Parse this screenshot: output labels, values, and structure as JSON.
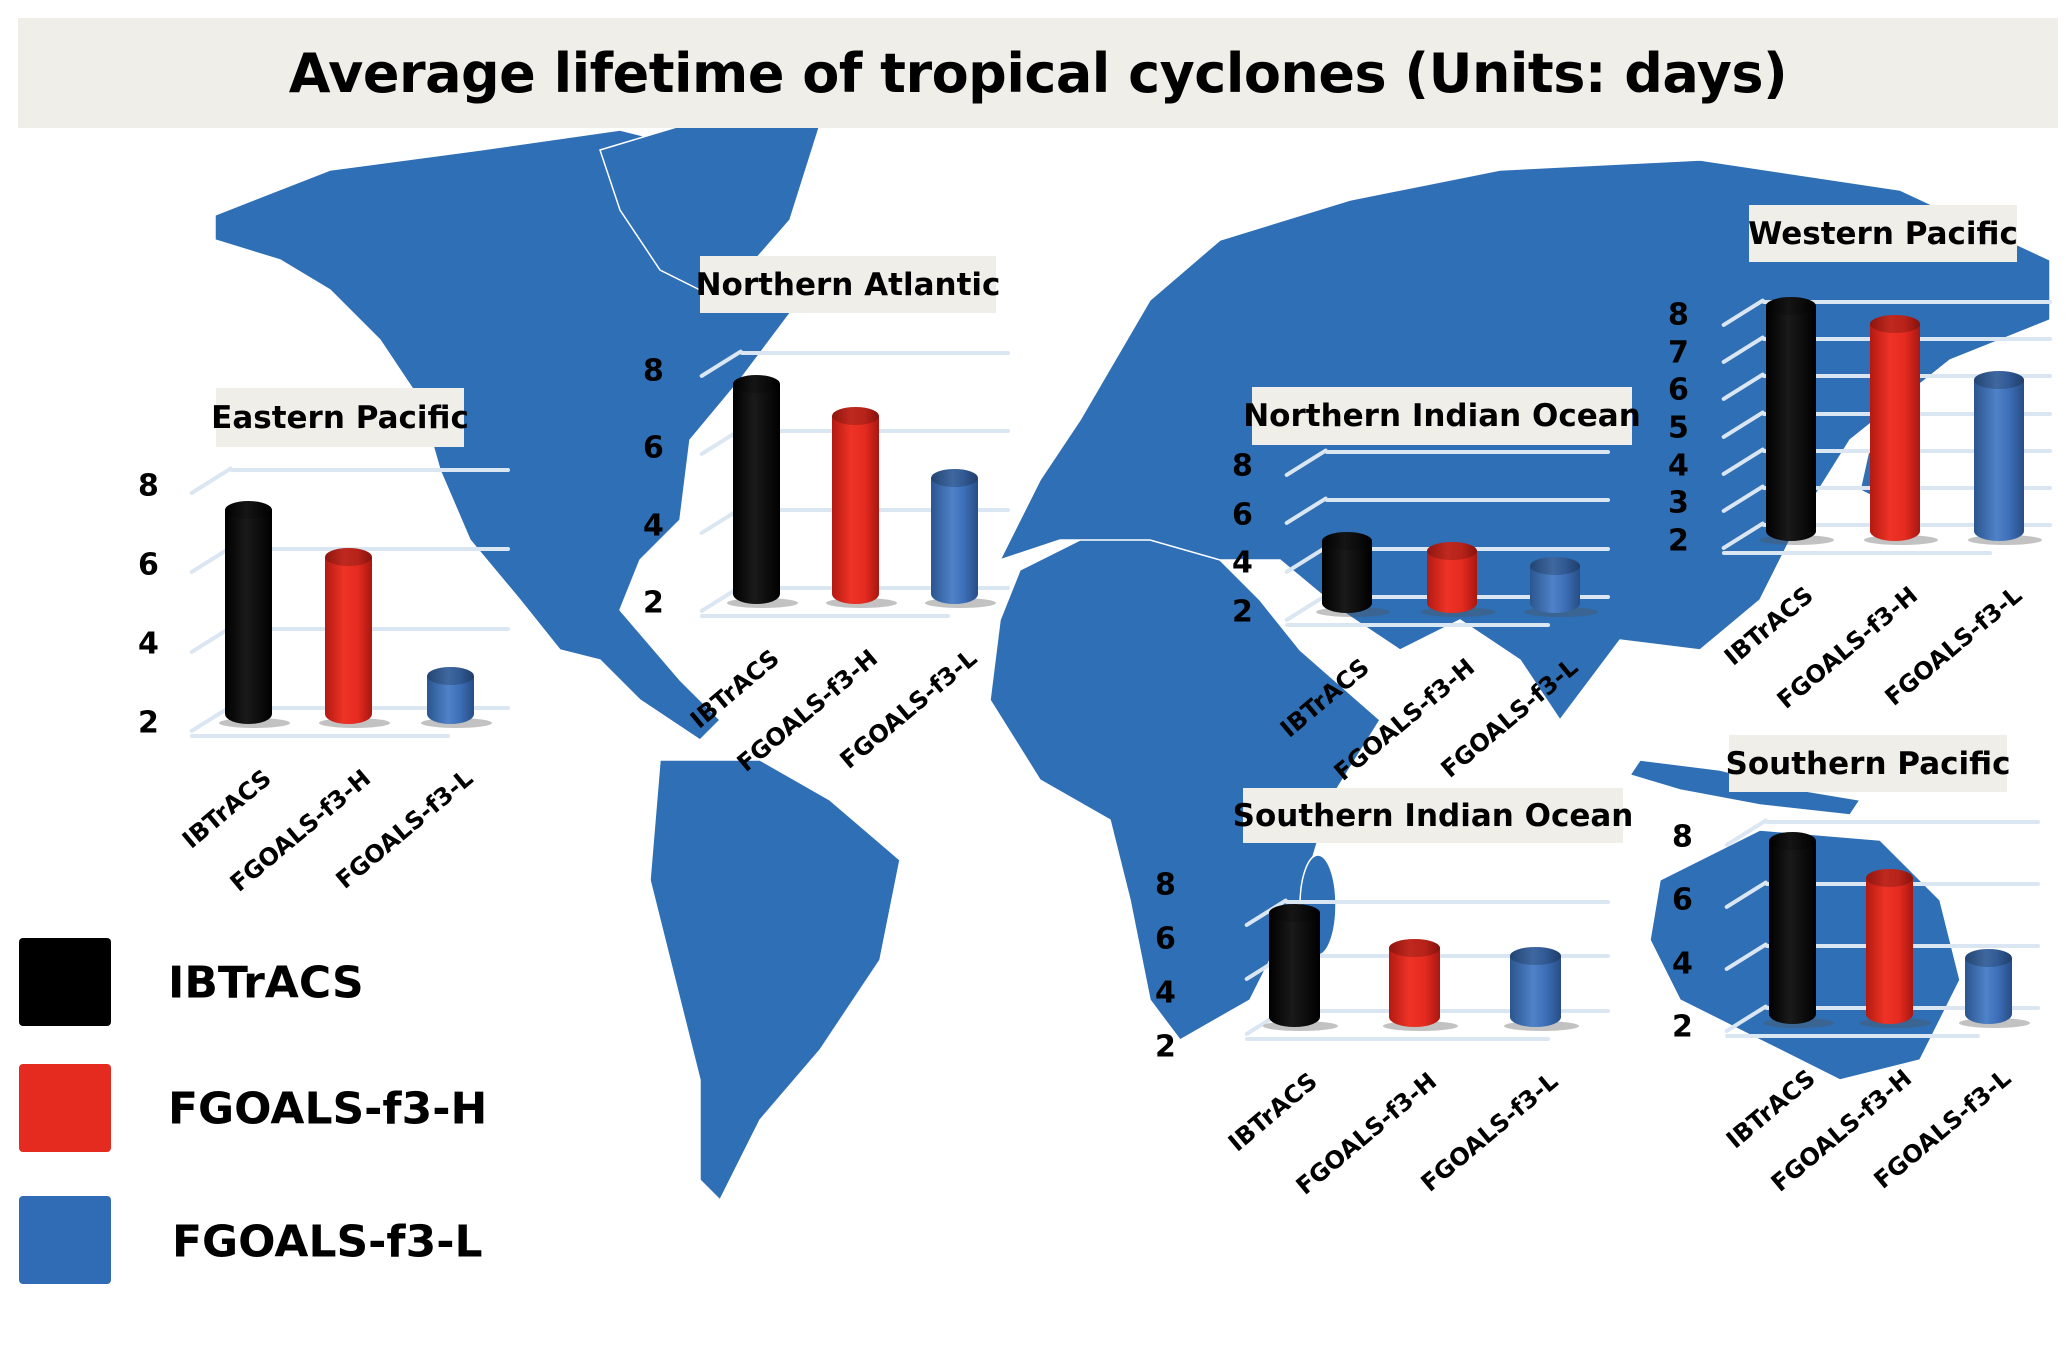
{
  "title": "Average lifetime of tropical cyclones (Units: days)",
  "colors": {
    "map": "#2e6fb5",
    "IBTrACS": "#000000",
    "FGOALS-f3-H": "#e52b20",
    "FGOALS-f3-L": "#3d6fb8",
    "title_bg": "#efeee8"
  },
  "legend": [
    {
      "label": "IBTrACS",
      "color": "#000000"
    },
    {
      "label": "FGOALS-f3-H",
      "color": "#e52b20"
    },
    {
      "label": "FGOALS-f3-L",
      "color": "#3d6fb8"
    }
  ],
  "chart_data": [
    {
      "type": "bar",
      "title": "Eastern Pacific",
      "categories": [
        "IBTrACS",
        "FGOALS-f3-H",
        "FGOALS-f3-L"
      ],
      "values": [
        7.0,
        5.8,
        2.8
      ],
      "yticks": [
        2,
        4,
        6,
        8
      ],
      "ylim": [
        2,
        8
      ],
      "grid": true
    },
    {
      "type": "bar",
      "title": "Northern Atlantic",
      "categories": [
        "IBTrACS",
        "FGOALS-f3-H",
        "FGOALS-f3-L"
      ],
      "values": [
        7.2,
        6.4,
        4.8
      ],
      "yticks": [
        2,
        4,
        6,
        8
      ],
      "ylim": [
        2,
        8
      ],
      "grid": true
    },
    {
      "type": "bar",
      "title": "Northern Indian Ocean",
      "categories": [
        "IBTrACS",
        "FGOALS-f3-H",
        "FGOALS-f3-L"
      ],
      "values": [
        4.3,
        3.9,
        3.3
      ],
      "yticks": [
        2,
        4,
        6,
        8
      ],
      "ylim": [
        2,
        8
      ],
      "grid": true
    },
    {
      "type": "bar",
      "title": "Western Pacific",
      "categories": [
        "IBTrACS",
        "FGOALS-f3-H",
        "FGOALS-f3-L"
      ],
      "values": [
        7.9,
        7.4,
        5.9
      ],
      "yticks": [
        2,
        3,
        4,
        5,
        6,
        7,
        8
      ],
      "ylim": [
        2,
        8
      ],
      "grid": true
    },
    {
      "type": "bar",
      "title": "Southern Indian Ocean",
      "categories": [
        "IBTrACS",
        "FGOALS-f3-H",
        "FGOALS-f3-L"
      ],
      "values": [
        5.6,
        4.3,
        4.0
      ],
      "yticks": [
        2,
        4,
        6,
        8
      ],
      "ylim": [
        2,
        8
      ],
      "grid": true
    },
    {
      "type": "bar",
      "title": "Southern Pacific",
      "categories": [
        "IBTrACS",
        "FGOALS-f3-H",
        "FGOALS-f3-L"
      ],
      "values": [
        7.4,
        6.2,
        3.6
      ],
      "yticks": [
        2,
        4,
        6,
        8
      ],
      "ylim": [
        2,
        8
      ],
      "grid": true
    }
  ]
}
